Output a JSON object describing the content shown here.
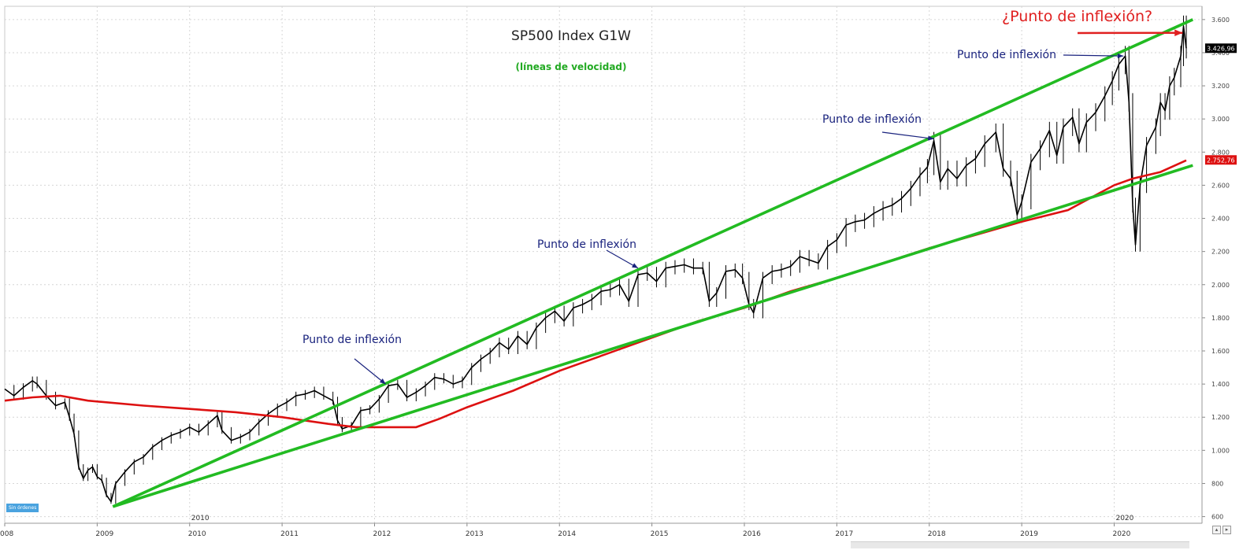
{
  "chart_data": {
    "type": "line",
    "title": "SP500 Index G1W",
    "subtitle": "(líneas de velocidad)",
    "x_ticks": [
      "008",
      "2009",
      "2010",
      "2011",
      "2012",
      "2013",
      "2014",
      "2015",
      "2016",
      "2017",
      "2018",
      "2019",
      "2020"
    ],
    "x_upper_labels": [
      "2010",
      "2020"
    ],
    "y_ticks": [
      "600",
      "800",
      "1.000",
      "1.200",
      "1.400",
      "1.600",
      "1.800",
      "2.000",
      "2.200",
      "2.400",
      "2.600",
      "2.800",
      "3.000",
      "3.200",
      "3.400",
      "3.600"
    ],
    "ylim": [
      560,
      3680
    ],
    "xlim": [
      2008.0,
      2020.95
    ],
    "series": [
      {
        "role": "price",
        "color": "#000000",
        "points": [
          [
            2008.0,
            1370
          ],
          [
            2008.1,
            1330
          ],
          [
            2008.2,
            1380
          ],
          [
            2008.3,
            1420
          ],
          [
            2008.35,
            1400
          ],
          [
            2008.45,
            1330
          ],
          [
            2008.55,
            1270
          ],
          [
            2008.65,
            1290
          ],
          [
            2008.7,
            1200
          ],
          [
            2008.75,
            1100
          ],
          [
            2008.8,
            900
          ],
          [
            2008.85,
            830
          ],
          [
            2008.9,
            880
          ],
          [
            2008.95,
            900
          ],
          [
            2009.0,
            840
          ],
          [
            2009.05,
            820
          ],
          [
            2009.1,
            730
          ],
          [
            2009.15,
            690
          ],
          [
            2009.2,
            800
          ],
          [
            2009.3,
            870
          ],
          [
            2009.4,
            930
          ],
          [
            2009.5,
            960
          ],
          [
            2009.6,
            1020
          ],
          [
            2009.7,
            1060
          ],
          [
            2009.8,
            1090
          ],
          [
            2009.9,
            1110
          ],
          [
            2010.0,
            1140
          ],
          [
            2010.1,
            1110
          ],
          [
            2010.2,
            1160
          ],
          [
            2010.3,
            1210
          ],
          [
            2010.35,
            1120
          ],
          [
            2010.45,
            1060
          ],
          [
            2010.55,
            1080
          ],
          [
            2010.65,
            1110
          ],
          [
            2010.75,
            1170
          ],
          [
            2010.85,
            1220
          ],
          [
            2010.95,
            1260
          ],
          [
            2011.05,
            1290
          ],
          [
            2011.15,
            1330
          ],
          [
            2011.25,
            1340
          ],
          [
            2011.35,
            1360
          ],
          [
            2011.45,
            1330
          ],
          [
            2011.55,
            1300
          ],
          [
            2011.6,
            1180
          ],
          [
            2011.65,
            1130
          ],
          [
            2011.75,
            1150
          ],
          [
            2011.85,
            1240
          ],
          [
            2011.95,
            1250
          ],
          [
            2012.05,
            1310
          ],
          [
            2012.15,
            1390
          ],
          [
            2012.25,
            1400
          ],
          [
            2012.35,
            1320
          ],
          [
            2012.45,
            1350
          ],
          [
            2012.55,
            1390
          ],
          [
            2012.65,
            1440
          ],
          [
            2012.75,
            1430
          ],
          [
            2012.85,
            1400
          ],
          [
            2012.95,
            1420
          ],
          [
            2013.05,
            1500
          ],
          [
            2013.15,
            1550
          ],
          [
            2013.25,
            1590
          ],
          [
            2013.35,
            1650
          ],
          [
            2013.45,
            1610
          ],
          [
            2013.55,
            1690
          ],
          [
            2013.65,
            1640
          ],
          [
            2013.75,
            1740
          ],
          [
            2013.85,
            1800
          ],
          [
            2013.95,
            1840
          ],
          [
            2014.05,
            1780
          ],
          [
            2014.15,
            1860
          ],
          [
            2014.25,
            1880
          ],
          [
            2014.35,
            1910
          ],
          [
            2014.45,
            1960
          ],
          [
            2014.55,
            1970
          ],
          [
            2014.65,
            2000
          ],
          [
            2014.75,
            1900
          ],
          [
            2014.85,
            2060
          ],
          [
            2014.95,
            2070
          ],
          [
            2015.05,
            2020
          ],
          [
            2015.15,
            2100
          ],
          [
            2015.25,
            2110
          ],
          [
            2015.35,
            2120
          ],
          [
            2015.45,
            2100
          ],
          [
            2015.55,
            2100
          ],
          [
            2015.62,
            1900
          ],
          [
            2015.7,
            1950
          ],
          [
            2015.8,
            2080
          ],
          [
            2015.9,
            2090
          ],
          [
            2015.98,
            2040
          ],
          [
            2016.05,
            1880
          ],
          [
            2016.1,
            1830
          ],
          [
            2016.2,
            2040
          ],
          [
            2016.3,
            2080
          ],
          [
            2016.4,
            2090
          ],
          [
            2016.5,
            2110
          ],
          [
            2016.6,
            2170
          ],
          [
            2016.7,
            2150
          ],
          [
            2016.8,
            2130
          ],
          [
            2016.9,
            2230
          ],
          [
            2017.0,
            2270
          ],
          [
            2017.1,
            2360
          ],
          [
            2017.2,
            2380
          ],
          [
            2017.3,
            2390
          ],
          [
            2017.4,
            2430
          ],
          [
            2017.5,
            2460
          ],
          [
            2017.6,
            2480
          ],
          [
            2017.7,
            2520
          ],
          [
            2017.8,
            2580
          ],
          [
            2017.9,
            2660
          ],
          [
            2017.98,
            2710
          ],
          [
            2018.05,
            2870
          ],
          [
            2018.12,
            2620
          ],
          [
            2018.2,
            2700
          ],
          [
            2018.3,
            2640
          ],
          [
            2018.4,
            2720
          ],
          [
            2018.5,
            2760
          ],
          [
            2018.6,
            2850
          ],
          [
            2018.72,
            2920
          ],
          [
            2018.8,
            2700
          ],
          [
            2018.88,
            2640
          ],
          [
            2018.95,
            2420
          ],
          [
            2019.0,
            2500
          ],
          [
            2019.1,
            2740
          ],
          [
            2019.2,
            2820
          ],
          [
            2019.3,
            2930
          ],
          [
            2019.38,
            2780
          ],
          [
            2019.45,
            2950
          ],
          [
            2019.55,
            3010
          ],
          [
            2019.62,
            2850
          ],
          [
            2019.7,
            2980
          ],
          [
            2019.8,
            3040
          ],
          [
            2019.9,
            3140
          ],
          [
            2019.98,
            3230
          ],
          [
            2020.05,
            3330
          ],
          [
            2020.12,
            3380
          ],
          [
            2020.16,
            3100
          ],
          [
            2020.2,
            2480
          ],
          [
            2020.23,
            2240
          ],
          [
            2020.28,
            2600
          ],
          [
            2020.35,
            2840
          ],
          [
            2020.45,
            2950
          ],
          [
            2020.5,
            3100
          ],
          [
            2020.55,
            3050
          ],
          [
            2020.6,
            3200
          ],
          [
            2020.65,
            3250
          ],
          [
            2020.72,
            3380
          ],
          [
            2020.75,
            3560
          ],
          [
            2020.78,
            3427
          ]
        ]
      },
      {
        "role": "moving-average",
        "color": "#dd1111",
        "points": [
          [
            2008.0,
            1300
          ],
          [
            2008.3,
            1320
          ],
          [
            2008.6,
            1330
          ],
          [
            2008.9,
            1300
          ],
          [
            2009.5,
            1270
          ],
          [
            2010.0,
            1250
          ],
          [
            2010.5,
            1230
          ],
          [
            2011.0,
            1200
          ],
          [
            2011.5,
            1160
          ],
          [
            2011.8,
            1140
          ],
          [
            2012.1,
            1140
          ],
          [
            2012.45,
            1140
          ],
          [
            2012.7,
            1190
          ],
          [
            2013.0,
            1260
          ],
          [
            2013.5,
            1360
          ],
          [
            2014.0,
            1480
          ],
          [
            2014.5,
            1580
          ],
          [
            2015.0,
            1680
          ],
          [
            2015.5,
            1780
          ],
          [
            2016.0,
            1860
          ],
          [
            2016.5,
            1960
          ],
          [
            2017.0,
            2040
          ],
          [
            2017.5,
            2130
          ],
          [
            2018.0,
            2220
          ],
          [
            2018.5,
            2300
          ],
          [
            2019.0,
            2380
          ],
          [
            2019.5,
            2450
          ],
          [
            2020.0,
            2600
          ],
          [
            2020.2,
            2640
          ],
          [
            2020.5,
            2680
          ],
          [
            2020.78,
            2750
          ]
        ]
      },
      {
        "role": "speed-line-upper",
        "color": "#22bb22",
        "points": [
          [
            2009.17,
            660
          ],
          [
            2020.85,
            3600
          ]
        ]
      },
      {
        "role": "speed-line-lower",
        "color": "#22bb22",
        "points": [
          [
            2009.17,
            660
          ],
          [
            2020.85,
            2720
          ]
        ]
      }
    ],
    "price_tags": [
      {
        "value": 3426.96,
        "label": "3.426,96",
        "bg": "#000000"
      },
      {
        "value": 2752.76,
        "label": "2.752,76",
        "bg": "#dd1111"
      }
    ],
    "annotations": [
      {
        "text": "Punto de inflexión",
        "color": "#1a237e",
        "arrow_to": [
          2012.12,
          1400
        ]
      },
      {
        "text": "Punto de inflexión",
        "color": "#1a237e",
        "arrow_to": [
          2014.85,
          2100
        ]
      },
      {
        "text": "Punto de inflexión",
        "color": "#1a237e",
        "arrow_to": [
          2018.05,
          2880
        ]
      },
      {
        "text": "Punto de inflexión",
        "color": "#1a237e",
        "arrow_to": [
          2020.1,
          3380
        ]
      },
      {
        "text": "¿Punto de inflexión?",
        "color": "#e02020",
        "arrow_to": [
          2020.74,
          3520
        ]
      }
    ],
    "grid": true,
    "legend": "none"
  },
  "badge_text": "Sin órdenes"
}
